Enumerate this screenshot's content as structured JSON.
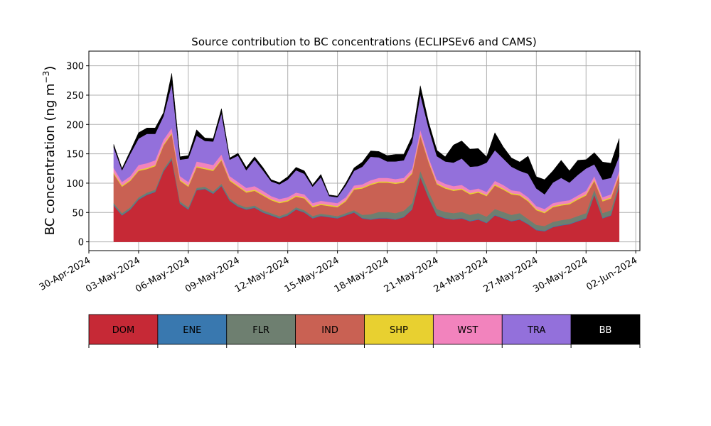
{
  "chart_data": {
    "type": "area",
    "stacked": true,
    "title": "Source contribution to BC concentrations (ECLIPSEv6 and CAMS)",
    "ylabel_main": "BC concentration (ng m",
    "ylabel_sup": "−3",
    "ylabel_close": ")",
    "xlabel": "",
    "ylim": [
      -15,
      325
    ],
    "yticks": [
      0,
      50,
      100,
      150,
      200,
      250,
      300
    ],
    "xlim": [
      "2024-04-30T00:00",
      "2024-06-02T06:00"
    ],
    "xticks": [
      "2024-04-30",
      "2024-05-03",
      "2024-05-06",
      "2024-05-09",
      "2024-05-12",
      "2024-05-15",
      "2024-05-18",
      "2024-05-21",
      "2024-05-24",
      "2024-05-27",
      "2024-05-30",
      "2024-06-02"
    ],
    "xtick_labels": [
      "30-Apr-2024",
      "03-May-2024",
      "06-May-2024",
      "09-May-2024",
      "12-May-2024",
      "15-May-2024",
      "18-May-2024",
      "21-May-2024",
      "24-May-2024",
      "27-May-2024",
      "30-May-2024",
      "02-Jun-2024"
    ],
    "grid": true,
    "x": [
      "2024-05-01T12:00",
      "2024-05-02T00:00",
      "2024-05-02T12:00",
      "2024-05-03T00:00",
      "2024-05-03T12:00",
      "2024-05-04T00:00",
      "2024-05-04T12:00",
      "2024-05-05T00:00",
      "2024-05-05T12:00",
      "2024-05-06T00:00",
      "2024-05-06T12:00",
      "2024-05-07T00:00",
      "2024-05-07T12:00",
      "2024-05-08T00:00",
      "2024-05-08T12:00",
      "2024-05-09T00:00",
      "2024-05-09T12:00",
      "2024-05-10T00:00",
      "2024-05-10T12:00",
      "2024-05-11T00:00",
      "2024-05-11T12:00",
      "2024-05-12T00:00",
      "2024-05-12T12:00",
      "2024-05-13T00:00",
      "2024-05-13T12:00",
      "2024-05-14T00:00",
      "2024-05-14T12:00",
      "2024-05-15T00:00",
      "2024-05-15T12:00",
      "2024-05-16T00:00",
      "2024-05-16T12:00",
      "2024-05-17T00:00",
      "2024-05-17T12:00",
      "2024-05-18T00:00",
      "2024-05-18T12:00",
      "2024-05-19T00:00",
      "2024-05-19T12:00",
      "2024-05-20T00:00",
      "2024-05-20T12:00",
      "2024-05-21T00:00",
      "2024-05-21T12:00",
      "2024-05-22T00:00",
      "2024-05-22T12:00",
      "2024-05-23T00:00",
      "2024-05-23T12:00",
      "2024-05-24T00:00",
      "2024-05-24T12:00",
      "2024-05-25T00:00",
      "2024-05-25T12:00",
      "2024-05-26T00:00",
      "2024-05-26T12:00",
      "2024-05-27T00:00",
      "2024-05-27T12:00",
      "2024-05-28T00:00",
      "2024-05-28T12:00",
      "2024-05-29T00:00",
      "2024-05-29T12:00",
      "2024-05-30T00:00",
      "2024-05-30T12:00",
      "2024-05-31T00:00",
      "2024-05-31T12:00",
      "2024-06-01T00:00"
    ],
    "series": [
      {
        "name": "DOM",
        "color": "#c62936",
        "values": [
          62,
          45,
          55,
          72,
          80,
          85,
          120,
          140,
          65,
          55,
          88,
          90,
          82,
          95,
          70,
          60,
          55,
          58,
          50,
          45,
          40,
          45,
          55,
          50,
          40,
          44,
          42,
          40,
          45,
          50,
          40,
          38,
          40,
          40,
          38,
          42,
          55,
          110,
          75,
          45,
          40,
          38,
          40,
          35,
          38,
          32,
          45,
          40,
          35,
          38,
          30,
          20,
          18,
          25,
          28,
          30,
          35,
          40,
          80,
          40,
          45,
          95
        ]
      },
      {
        "name": "ENE",
        "color": "#3978af",
        "values": [
          1,
          1,
          1,
          1,
          1,
          1,
          1,
          1,
          1,
          1,
          1,
          1,
          1,
          1,
          1,
          1,
          1,
          1,
          1,
          1,
          1,
          1,
          1,
          1,
          1,
          1,
          1,
          1,
          1,
          1,
          1,
          1,
          1,
          1,
          1,
          1,
          1,
          1,
          1,
          1,
          1,
          1,
          1,
          1,
          1,
          1,
          1,
          1,
          1,
          1,
          1,
          1,
          1,
          1,
          1,
          1,
          1,
          1,
          1,
          1,
          1,
          1
        ]
      },
      {
        "name": "FLR",
        "color": "#6e7f70",
        "values": [
          3,
          3,
          3,
          3,
          3,
          3,
          3,
          3,
          3,
          3,
          3,
          3,
          3,
          3,
          3,
          3,
          3,
          3,
          3,
          3,
          3,
          3,
          3,
          3,
          3,
          3,
          3,
          3,
          3,
          3,
          5,
          8,
          10,
          10,
          10,
          10,
          10,
          10,
          10,
          10,
          10,
          10,
          10,
          10,
          10,
          10,
          10,
          10,
          10,
          10,
          8,
          8,
          8,
          8,
          8,
          8,
          8,
          8,
          8,
          8,
          8,
          5
        ]
      },
      {
        "name": "IND",
        "color": "#c96153",
        "values": [
          50,
          45,
          45,
          45,
          40,
          40,
          40,
          40,
          35,
          35,
          35,
          30,
          35,
          40,
          30,
          30,
          25,
          25,
          25,
          22,
          22,
          20,
          18,
          20,
          15,
          15,
          15,
          15,
          20,
          35,
          45,
          50,
          50,
          50,
          50,
          48,
          50,
          60,
          50,
          42,
          40,
          38,
          38,
          35,
          35,
          35,
          40,
          38,
          35,
          30,
          30,
          25,
          22,
          25,
          25,
          25,
          28,
          30,
          15,
          20,
          20,
          12
        ]
      },
      {
        "name": "SHP",
        "color": "#e8d030",
        "values": [
          2,
          2,
          2,
          2,
          2,
          2,
          2,
          2,
          2,
          2,
          2,
          2,
          2,
          2,
          2,
          2,
          2,
          2,
          2,
          2,
          2,
          2,
          2,
          2,
          2,
          2,
          2,
          2,
          2,
          2,
          2,
          2,
          2,
          2,
          2,
          2,
          2,
          2,
          2,
          2,
          2,
          2,
          2,
          2,
          2,
          2,
          2,
          2,
          2,
          2,
          2,
          2,
          2,
          2,
          2,
          2,
          2,
          2,
          2,
          2,
          2,
          2
        ]
      },
      {
        "name": "WST",
        "color": "#f283bd",
        "values": [
          8,
          6,
          6,
          8,
          8,
          8,
          8,
          8,
          6,
          6,
          8,
          8,
          8,
          8,
          6,
          6,
          6,
          6,
          6,
          5,
          5,
          5,
          5,
          5,
          5,
          5,
          5,
          5,
          5,
          5,
          5,
          6,
          6,
          6,
          6,
          6,
          6,
          8,
          6,
          6,
          6,
          6,
          6,
          5,
          5,
          5,
          6,
          6,
          5,
          5,
          5,
          5,
          5,
          5,
          5,
          5,
          5,
          6,
          6,
          5,
          5,
          6
        ]
      },
      {
        "name": "TRA",
        "color": "#9370db",
        "values": [
          35,
          20,
          38,
          45,
          50,
          45,
          40,
          75,
          28,
          40,
          44,
          38,
          40,
          70,
          28,
          45,
          30,
          45,
          35,
          25,
          25,
          30,
          38,
          35,
          28,
          40,
          10,
          10,
          20,
          25,
          30,
          40,
          35,
          28,
          30,
          30,
          45,
          60,
          50,
          40,
          38,
          40,
          45,
          40,
          38,
          50,
          52,
          45,
          40,
          35,
          40,
          30,
          25,
          35,
          40,
          30,
          35,
          38,
          20,
          30,
          28,
          25
        ]
      },
      {
        "name": "BB",
        "color": "#000000",
        "values": [
          5,
          3,
          5,
          10,
          10,
          10,
          6,
          18,
          5,
          5,
          10,
          5,
          5,
          8,
          3,
          4,
          5,
          5,
          5,
          3,
          3,
          5,
          5,
          5,
          3,
          5,
          2,
          2,
          4,
          5,
          8,
          10,
          10,
          10,
          12,
          10,
          10,
          15,
          10,
          10,
          8,
          30,
          30,
          30,
          30,
          10,
          30,
          20,
          15,
          15,
          30,
          20,
          25,
          20,
          30,
          20,
          25,
          15,
          20,
          30,
          25,
          30
        ]
      }
    ]
  }
}
